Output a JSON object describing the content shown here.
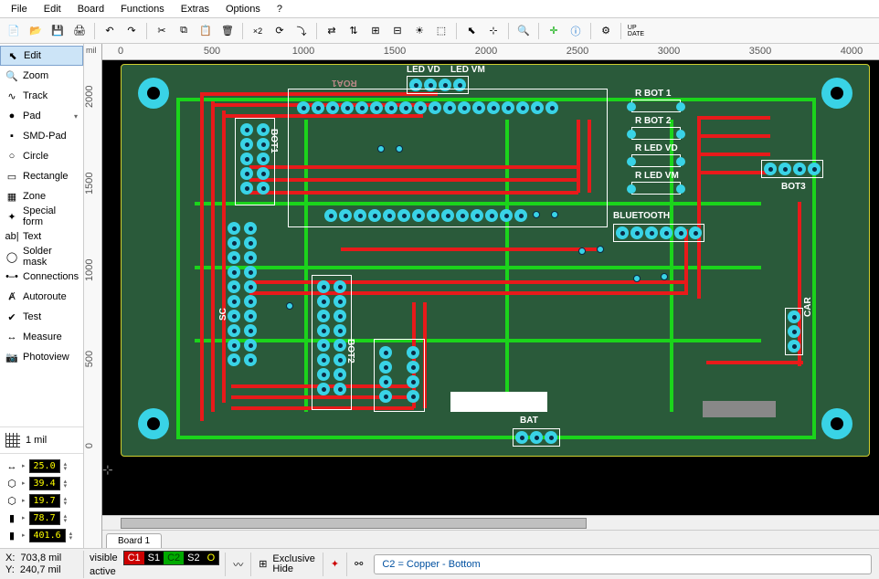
{
  "menu": {
    "items": [
      "File",
      "Edit",
      "Board",
      "Functions",
      "Extras",
      "Options",
      "?"
    ]
  },
  "toolbar": {
    "groups": [
      [
        "new",
        "open",
        "save",
        "print"
      ],
      [
        "undo",
        "redo"
      ],
      [
        "cut",
        "copy",
        "paste",
        "delete"
      ],
      [
        "x2",
        "rotate",
        "rotate-step"
      ],
      [
        "mirror-h",
        "mirror-v",
        "align",
        "swap",
        "sun",
        "snap"
      ],
      [
        "pointer",
        "pick"
      ],
      [
        "zoom-tool"
      ],
      [
        "crosshair",
        "info"
      ],
      [
        "gear"
      ],
      [
        "update"
      ]
    ]
  },
  "tools": {
    "items": [
      {
        "id": "edit",
        "label": "Edit",
        "icon": "cursor",
        "drop": false,
        "sel": true
      },
      {
        "id": "zoom",
        "label": "Zoom",
        "icon": "zoom",
        "drop": false,
        "sel": false
      },
      {
        "id": "track",
        "label": "Track",
        "icon": "track",
        "drop": false,
        "sel": false
      },
      {
        "id": "pad",
        "label": "Pad",
        "icon": "pad",
        "drop": true,
        "sel": false
      },
      {
        "id": "smd",
        "label": "SMD-Pad",
        "icon": "smd",
        "drop": false,
        "sel": false
      },
      {
        "id": "circle",
        "label": "Circle",
        "icon": "circle",
        "drop": false,
        "sel": false
      },
      {
        "id": "rect",
        "label": "Rectangle",
        "icon": "rect",
        "drop": false,
        "sel": false
      },
      {
        "id": "zone",
        "label": "Zone",
        "icon": "zone",
        "drop": false,
        "sel": false
      },
      {
        "id": "form",
        "label": "Special form",
        "icon": "form",
        "drop": false,
        "sel": false
      },
      {
        "id": "text",
        "label": "Text",
        "icon": "text",
        "drop": false,
        "sel": false
      },
      {
        "id": "mask",
        "label": "Solder mask",
        "icon": "mask",
        "drop": false,
        "sel": false
      },
      {
        "id": "conn",
        "label": "Connections",
        "icon": "conn",
        "drop": false,
        "sel": false
      },
      {
        "id": "auto",
        "label": "Autoroute",
        "icon": "auto",
        "drop": false,
        "sel": false
      },
      {
        "id": "test",
        "label": "Test",
        "icon": "test",
        "drop": false,
        "sel": false
      },
      {
        "id": "meas",
        "label": "Measure",
        "icon": "meas",
        "drop": false,
        "sel": false
      },
      {
        "id": "photo",
        "label": "Photoview",
        "icon": "photo",
        "drop": false,
        "sel": false
      }
    ]
  },
  "grid": {
    "label": "1 mil"
  },
  "params": {
    "rows": [
      {
        "icon": "↔",
        "val": "25.0"
      },
      {
        "icon": "⬡",
        "val": "39.4"
      },
      {
        "icon": "⬡",
        "val": "19.7"
      },
      {
        "icon": "▮",
        "val": "78.7"
      },
      {
        "icon": "▮",
        "val": "401.6"
      }
    ]
  },
  "ruler": {
    "unit": "mil",
    "h": [
      "0",
      "500",
      "1000",
      "1500",
      "2000",
      "2500",
      "3000",
      "3500",
      "4000"
    ],
    "v": [
      "0",
      "500",
      "1000",
      "1500",
      "2000"
    ]
  },
  "board": {
    "bg": "#2a5a3a",
    "outline": "#cfcf30",
    "copper_top": "#e81a1a",
    "copper_bot": "#1bd41b",
    "pad_color": "#39d3e6",
    "silk_color": "#ffffff",
    "labels": {
      "led_vd": "LED VD",
      "led_vm": "LED VM",
      "r_bot1": "R BOT 1",
      "r_bot2": "R BOT 2",
      "r_led_vd": "R LED VD",
      "r_led_vm": "R LED VM",
      "bluetooth": "BLUETOOTH",
      "bot3": "BOT3",
      "bat": "BAT",
      "car": "CAR",
      "bot1": "BOT1",
      "bot2": "BOT2",
      "sc": "SC",
      "header_ref": "ROA1"
    }
  },
  "tabs": {
    "active": "Board 1"
  },
  "status": {
    "x_label": "X:",
    "x_val": "703,8 mil",
    "y_label": "Y:",
    "y_val": "240,7 mil",
    "visible": "visible",
    "active": "active",
    "layers": [
      {
        "t": "C1",
        "bg": "#c00",
        "fg": "#fff"
      },
      {
        "t": "S1",
        "bg": "#000",
        "fg": "#fff"
      },
      {
        "t": "C2",
        "bg": "#0a0",
        "fg": "#040"
      },
      {
        "t": "S2",
        "bg": "#000",
        "fg": "#fff"
      },
      {
        "t": "O",
        "bg": "#000",
        "fg": "#ff0"
      }
    ],
    "exclusive": "Exclusive",
    "hide": "Hide",
    "layer_desc": "C2 = Copper - Bottom"
  }
}
